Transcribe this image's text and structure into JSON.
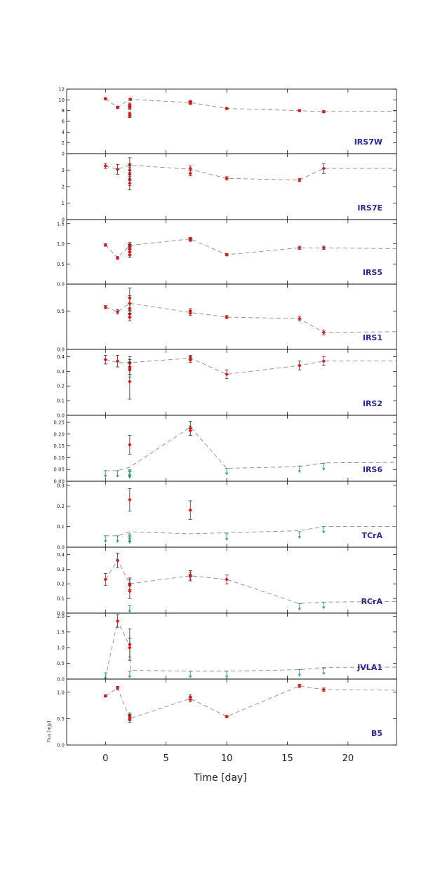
{
  "chart_data": {
    "type": "scatter",
    "xlabel": "Time [day]",
    "ylabel": "Flux [mJy]",
    "xlim": [
      -3.2,
      24
    ],
    "xticks": [
      0,
      5,
      10,
      15,
      20
    ],
    "colors": {
      "detection": "#e0191e",
      "error_bar": "#333333",
      "model_line": "#888888",
      "upper_limit": "#2e8b6e",
      "label": "#2a2a8a",
      "axis": "#000000"
    },
    "panels": [
      {
        "name": "IRS7W",
        "ylim": [
          0,
          12
        ],
        "yticks": [
          0,
          2,
          4,
          6,
          8,
          10,
          12
        ],
        "ytick_labels": [
          "0",
          "2",
          "4",
          "6",
          "8",
          "10",
          "12"
        ],
        "points": [
          {
            "x": 0,
            "y": 10.2,
            "err": 0.2
          },
          {
            "x": 1,
            "y": 8.6,
            "err": 0.2
          },
          {
            "x": 2,
            "y": 9.1,
            "err": 0.3
          },
          {
            "x": 2,
            "y": 8.8,
            "err": 0.3
          },
          {
            "x": 2,
            "y": 8.5,
            "err": 0.3
          },
          {
            "x": 2,
            "y": 7.4,
            "err": 0.3
          },
          {
            "x": 2,
            "y": 7.0,
            "err": 0.3
          },
          {
            "x": 2.05,
            "y": 10.1,
            "err": 0.2
          },
          {
            "x": 7,
            "y": 9.6,
            "err": 0.3
          },
          {
            "x": 7,
            "y": 9.4,
            "err": 0.3
          },
          {
            "x": 10,
            "y": 8.4,
            "err": 0.2
          },
          {
            "x": 16,
            "y": 8.0,
            "err": 0.2
          },
          {
            "x": 18,
            "y": 7.8,
            "err": 0.2
          }
        ],
        "upper_limits": [],
        "model": {
          "x": [
            0,
            1,
            2,
            7,
            10,
            16,
            18,
            24
          ],
          "y": [
            10.2,
            8.6,
            10.1,
            9.5,
            8.4,
            8.0,
            7.8,
            7.9
          ]
        }
      },
      {
        "name": "IRS7E",
        "ylim": [
          0,
          4
        ],
        "yticks": [
          0,
          1,
          2,
          3
        ],
        "ytick_labels": [
          "0",
          "1",
          "2",
          "3"
        ],
        "points": [
          {
            "x": 0,
            "y": 3.25,
            "err": 0.15
          },
          {
            "x": 1,
            "y": 3.05,
            "err": 0.3
          },
          {
            "x": 2,
            "y": 3.3,
            "err": 0.45
          },
          {
            "x": 2,
            "y": 3.0,
            "err": 0.4
          },
          {
            "x": 2,
            "y": 2.75,
            "err": 0.4
          },
          {
            "x": 2,
            "y": 2.45,
            "err": 0.4
          },
          {
            "x": 2,
            "y": 2.2,
            "err": 0.4
          },
          {
            "x": 7,
            "y": 3.1,
            "err": 0.15
          },
          {
            "x": 7,
            "y": 2.8,
            "err": 0.15
          },
          {
            "x": 10,
            "y": 2.5,
            "err": 0.1
          },
          {
            "x": 16,
            "y": 2.4,
            "err": 0.1
          },
          {
            "x": 18,
            "y": 3.1,
            "err": 0.3
          }
        ],
        "upper_limits": [],
        "model": {
          "x": [
            0,
            1,
            2,
            7,
            10,
            16,
            18,
            24
          ],
          "y": [
            3.25,
            3.05,
            3.3,
            3.05,
            2.5,
            2.4,
            3.1,
            3.1
          ]
        }
      },
      {
        "name": "IRS5",
        "ylim": [
          0,
          1.6
        ],
        "yticks": [
          0,
          0.5,
          1.0,
          1.5
        ],
        "ytick_labels": [
          "0.0",
          "0.5",
          "1.0",
          "1.5"
        ],
        "points": [
          {
            "x": 0,
            "y": 0.97,
            "err": 0.03
          },
          {
            "x": 1,
            "y": 0.65,
            "err": 0.03
          },
          {
            "x": 2,
            "y": 0.98,
            "err": 0.05
          },
          {
            "x": 2,
            "y": 0.93,
            "err": 0.05
          },
          {
            "x": 2,
            "y": 0.9,
            "err": 0.05
          },
          {
            "x": 2,
            "y": 0.8,
            "err": 0.06
          },
          {
            "x": 2,
            "y": 0.72,
            "err": 0.06
          },
          {
            "x": 7,
            "y": 1.12,
            "err": 0.04
          },
          {
            "x": 7,
            "y": 1.1,
            "err": 0.04
          },
          {
            "x": 10,
            "y": 0.73,
            "err": 0.03
          },
          {
            "x": 16,
            "y": 0.9,
            "err": 0.04
          },
          {
            "x": 18,
            "y": 0.9,
            "err": 0.04
          }
        ],
        "upper_limits": [],
        "model": {
          "x": [
            0,
            1,
            2,
            7,
            10,
            16,
            18,
            24
          ],
          "y": [
            0.97,
            0.65,
            0.96,
            1.12,
            0.73,
            0.9,
            0.9,
            0.88
          ]
        }
      },
      {
        "name": "IRS1",
        "ylim": [
          0,
          0.85
        ],
        "yticks": [
          0,
          0.5
        ],
        "ytick_labels": [
          "0.0",
          "0.5"
        ],
        "points": [
          {
            "x": 0,
            "y": 0.55,
            "err": 0.02
          },
          {
            "x": 1,
            "y": 0.49,
            "err": 0.03
          },
          {
            "x": 2,
            "y": 0.67,
            "err": 0.13
          },
          {
            "x": 2,
            "y": 0.6,
            "err": 0.1
          },
          {
            "x": 2,
            "y": 0.53,
            "err": 0.06
          },
          {
            "x": 2,
            "y": 0.46,
            "err": 0.05
          },
          {
            "x": 2,
            "y": 0.42,
            "err": 0.05
          },
          {
            "x": 7,
            "y": 0.5,
            "err": 0.03
          },
          {
            "x": 7,
            "y": 0.47,
            "err": 0.03
          },
          {
            "x": 10,
            "y": 0.42,
            "err": 0.02
          },
          {
            "x": 16,
            "y": 0.4,
            "err": 0.03
          },
          {
            "x": 18,
            "y": 0.22,
            "err": 0.03
          }
        ],
        "upper_limits": [],
        "model": {
          "x": [
            0,
            1,
            2,
            7,
            10,
            16,
            18,
            24
          ],
          "y": [
            0.55,
            0.49,
            0.6,
            0.48,
            0.42,
            0.4,
            0.22,
            0.23
          ]
        }
      },
      {
        "name": "IRS2",
        "ylim": [
          0,
          0.45
        ],
        "yticks": [
          0,
          0.1,
          0.2,
          0.3,
          0.4
        ],
        "ytick_labels": [
          "0.0",
          "0.1",
          "0.2",
          "0.3",
          "0.4"
        ],
        "points": [
          {
            "x": 0,
            "y": 0.38,
            "err": 0.03
          },
          {
            "x": 1,
            "y": 0.37,
            "err": 0.04
          },
          {
            "x": 2,
            "y": 0.36,
            "err": 0.04
          },
          {
            "x": 2,
            "y": 0.33,
            "err": 0.05
          },
          {
            "x": 2,
            "y": 0.31,
            "err": 0.05
          },
          {
            "x": 2,
            "y": 0.23,
            "err": 0.12
          },
          {
            "x": 7,
            "y": 0.39,
            "err": 0.02
          },
          {
            "x": 7,
            "y": 0.38,
            "err": 0.02
          },
          {
            "x": 10,
            "y": 0.28,
            "err": 0.03
          },
          {
            "x": 16,
            "y": 0.34,
            "err": 0.03
          },
          {
            "x": 18,
            "y": 0.37,
            "err": 0.03
          }
        ],
        "upper_limits": [],
        "model": {
          "x": [
            0,
            1,
            2,
            7,
            10,
            16,
            18,
            24
          ],
          "y": [
            0.38,
            0.36,
            0.36,
            0.39,
            0.28,
            0.34,
            0.37,
            0.37
          ]
        }
      },
      {
        "name": "IRS6",
        "ylim": [
          0,
          0.28
        ],
        "yticks": [
          0,
          0.05,
          0.1,
          0.15,
          0.2,
          0.25
        ],
        "ytick_labels": [
          "0.00",
          "0.05",
          "0.10",
          "0.15",
          "0.20",
          "0.25"
        ],
        "points": [
          {
            "x": 2,
            "y": 0.155,
            "err": 0.04
          },
          {
            "x": 7,
            "y": 0.225,
            "err": 0.03
          },
          {
            "x": 7,
            "y": 0.215,
            "err": 0.02
          }
        ],
        "upper_limits": [
          {
            "x": 0,
            "y": 0.045
          },
          {
            "x": 1,
            "y": 0.045
          },
          {
            "x": 2,
            "y": 0.05
          },
          {
            "x": 2,
            "y": 0.045
          },
          {
            "x": 2,
            "y": 0.04
          },
          {
            "x": 10,
            "y": 0.055
          },
          {
            "x": 16,
            "y": 0.065
          },
          {
            "x": 18,
            "y": 0.075
          }
        ],
        "model": {
          "x": [
            0,
            1,
            2,
            7,
            10,
            16,
            18,
            24
          ],
          "y": [
            0.045,
            0.045,
            0.06,
            0.23,
            0.055,
            0.062,
            0.078,
            0.08
          ]
        }
      },
      {
        "name": "TCrA",
        "ylim": [
          0,
          0.32
        ],
        "yticks": [
          0,
          0.1,
          0.2,
          0.3
        ],
        "ytick_labels": [
          "0.0",
          "0.1",
          "0.2",
          "0.3"
        ],
        "points": [
          {
            "x": 2,
            "y": 0.23,
            "err": 0.055
          },
          {
            "x": 7,
            "y": 0.18,
            "err": 0.045
          }
        ],
        "upper_limits": [
          {
            "x": 0,
            "y": 0.055
          },
          {
            "x": 1,
            "y": 0.055
          },
          {
            "x": 2,
            "y": 0.065
          },
          {
            "x": 2,
            "y": 0.055
          },
          {
            "x": 2,
            "y": 0.05
          },
          {
            "x": 10,
            "y": 0.065
          },
          {
            "x": 16,
            "y": 0.075
          },
          {
            "x": 18,
            "y": 0.1
          }
        ],
        "model": {
          "x": [
            0,
            1,
            2,
            7,
            10,
            16,
            18,
            24
          ],
          "y": [
            0.055,
            0.055,
            0.075,
            0.065,
            0.07,
            0.08,
            0.1,
            0.1
          ]
        }
      },
      {
        "name": "RCrA",
        "ylim": [
          0,
          0.45
        ],
        "yticks": [
          0,
          0.1,
          0.2,
          0.3,
          0.4
        ],
        "ytick_labels": [
          "0.0",
          "0.1",
          "0.2",
          "0.3",
          "0.4"
        ],
        "points": [
          {
            "x": 0,
            "y": 0.23,
            "err": 0.04
          },
          {
            "x": 1,
            "y": 0.36,
            "err": 0.05
          },
          {
            "x": 2,
            "y": 0.2,
            "err": 0.04
          },
          {
            "x": 2,
            "y": 0.19,
            "err": 0.04
          },
          {
            "x": 2,
            "y": 0.15,
            "err": 0.05
          },
          {
            "x": 7,
            "y": 0.26,
            "err": 0.03
          },
          {
            "x": 7,
            "y": 0.25,
            "err": 0.03
          },
          {
            "x": 10,
            "y": 0.23,
            "err": 0.03
          }
        ],
        "upper_limits": [
          {
            "x": 2,
            "y": 0.05
          },
          {
            "x": 16,
            "y": 0.065
          },
          {
            "x": 18,
            "y": 0.075
          }
        ],
        "model": {
          "x": [
            0,
            1,
            2,
            7,
            10,
            16,
            18,
            24
          ],
          "y": [
            0.23,
            0.36,
            0.2,
            0.255,
            0.23,
            0.065,
            0.075,
            0.08
          ]
        }
      },
      {
        "name": "JVLA1",
        "ylim": [
          0,
          2.1
        ],
        "yticks": [
          0,
          0.5,
          1.0,
          1.5,
          2.0
        ],
        "ytick_labels": [
          "0.0",
          "0.5",
          "1.0",
          "1.5",
          "2.0"
        ],
        "points": [
          {
            "x": 1,
            "y": 1.85,
            "err": 0.2
          },
          {
            "x": 2,
            "y": 1.1,
            "err": 0.5
          },
          {
            "x": 2,
            "y": 1.0,
            "err": 0.3
          }
        ],
        "upper_limits": [
          {
            "x": 0,
            "y": 0.2
          },
          {
            "x": 2,
            "y": 0.25
          },
          {
            "x": 7,
            "y": 0.25
          },
          {
            "x": 10,
            "y": 0.25
          },
          {
            "x": 16,
            "y": 0.3
          },
          {
            "x": 18,
            "y": 0.35
          }
        ],
        "model": {
          "x": [
            0,
            1,
            2,
            2.05,
            7,
            10,
            16,
            18,
            24
          ],
          "y": [
            0.05,
            1.85,
            1.05,
            0.28,
            0.25,
            0.25,
            0.3,
            0.37,
            0.38
          ]
        }
      },
      {
        "name": "B5",
        "ylim": [
          0,
          1.25
        ],
        "yticks": [
          0,
          0.5,
          1.0
        ],
        "ytick_labels": [
          "0.0",
          "0.5",
          "1.0"
        ],
        "points": [
          {
            "x": 0,
            "y": 0.93,
            "err": 0.02
          },
          {
            "x": 1,
            "y": 1.08,
            "err": 0.03
          },
          {
            "x": 2,
            "y": 0.55,
            "err": 0.06
          },
          {
            "x": 2,
            "y": 0.52,
            "err": 0.06
          },
          {
            "x": 2,
            "y": 0.49,
            "err": 0.06
          },
          {
            "x": 7,
            "y": 0.91,
            "err": 0.04
          },
          {
            "x": 7,
            "y": 0.86,
            "err": 0.04
          },
          {
            "x": 10,
            "y": 0.54,
            "err": 0.02
          },
          {
            "x": 16,
            "y": 1.12,
            "err": 0.03
          },
          {
            "x": 18,
            "y": 1.05,
            "err": 0.03
          }
        ],
        "upper_limits": [],
        "model": {
          "x": [
            0,
            1,
            2,
            7,
            10,
            16,
            18,
            24
          ],
          "y": [
            0.93,
            1.08,
            0.5,
            0.88,
            0.54,
            1.12,
            1.05,
            1.04
          ]
        }
      }
    ]
  }
}
